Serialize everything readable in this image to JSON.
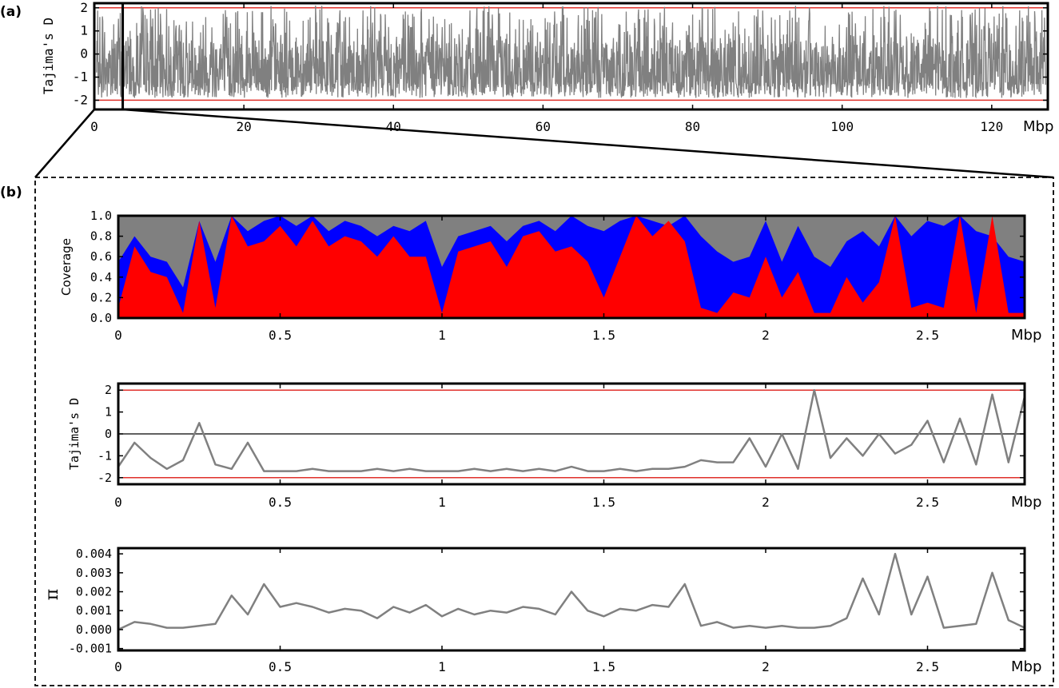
{
  "chart_data": [
    {
      "id": "a",
      "panel_label": "(a)",
      "type": "line",
      "ylabel": "Tajima's D",
      "x_unit": "Mbp",
      "xlim": [
        0,
        127.5
      ],
      "ylim": [
        -2.4,
        2.2
      ],
      "x_ticks": [
        0,
        20,
        40,
        60,
        80,
        100,
        120
      ],
      "y_ticks": [
        -2,
        -1,
        0,
        1,
        2
      ],
      "reference_lines": [
        2,
        -2
      ],
      "zoom_window": [
        0,
        3.8
      ],
      "series_color": "#808080",
      "reference_color": "#e0302a",
      "data_note": "dense genome-wide Tajima's D values mostly between -1.9 and 2.1"
    },
    {
      "id": "b1",
      "panel_label": "(b)",
      "type": "area",
      "ylabel": "Coverage",
      "x_unit": "Mbp",
      "xlim": [
        0,
        2.8
      ],
      "ylim": [
        0,
        1.0
      ],
      "x_ticks": [
        0,
        0.5,
        1,
        1.5,
        2,
        2.5
      ],
      "x_tick_labels": [
        "0",
        "0.5",
        "1",
        "1.5",
        "2",
        "2.5"
      ],
      "y_ticks": [
        0,
        0.2,
        0.4,
        0.6,
        0.8,
        1.0
      ],
      "y_tick_labels": [
        "0.0",
        "0.2",
        "0.4",
        "0.6",
        "0.8",
        "1.0"
      ],
      "colors": {
        "background": "#808080",
        "blue": "#0000ff",
        "red": "#ff0000"
      },
      "x": [
        0,
        0.05,
        0.1,
        0.15,
        0.2,
        0.25,
        0.3,
        0.35,
        0.4,
        0.45,
        0.5,
        0.55,
        0.6,
        0.65,
        0.7,
        0.75,
        0.8,
        0.85,
        0.9,
        0.95,
        1.0,
        1.05,
        1.1,
        1.15,
        1.2,
        1.25,
        1.3,
        1.35,
        1.4,
        1.45,
        1.5,
        1.55,
        1.6,
        1.65,
        1.7,
        1.75,
        1.8,
        1.85,
        1.9,
        1.95,
        2.0,
        2.05,
        2.1,
        2.15,
        2.2,
        2.25,
        2.3,
        2.35,
        2.4,
        2.45,
        2.5,
        2.55,
        2.6,
        2.65,
        2.7,
        2.75,
        2.8
      ],
      "blue_values": [
        0.55,
        0.8,
        0.6,
        0.55,
        0.3,
        0.95,
        0.55,
        1.0,
        0.85,
        0.95,
        1.0,
        0.9,
        1.0,
        0.85,
        0.95,
        0.9,
        0.8,
        0.9,
        0.85,
        0.95,
        0.5,
        0.8,
        0.85,
        0.9,
        0.75,
        0.9,
        0.95,
        0.85,
        1.0,
        0.9,
        0.85,
        0.95,
        1.0,
        0.95,
        0.9,
        1.0,
        0.8,
        0.65,
        0.55,
        0.6,
        0.95,
        0.55,
        0.9,
        0.6,
        0.5,
        0.75,
        0.85,
        0.7,
        1.0,
        0.8,
        0.95,
        0.9,
        1.0,
        0.85,
        0.8,
        0.6,
        0.55
      ],
      "red_values": [
        0.1,
        0.7,
        0.45,
        0.4,
        0.05,
        0.95,
        0.1,
        1.0,
        0.7,
        0.75,
        0.9,
        0.7,
        0.95,
        0.7,
        0.8,
        0.75,
        0.6,
        0.8,
        0.6,
        0.6,
        0.05,
        0.65,
        0.7,
        0.75,
        0.5,
        0.8,
        0.85,
        0.65,
        0.7,
        0.55,
        0.2,
        0.6,
        1.0,
        0.8,
        0.95,
        0.75,
        0.1,
        0.05,
        0.25,
        0.2,
        0.6,
        0.2,
        0.45,
        0.05,
        0.05,
        0.4,
        0.15,
        0.35,
        1.0,
        0.1,
        0.15,
        0.1,
        1.0,
        0.05,
        1.0,
        0.05,
        0.05
      ]
    },
    {
      "id": "b2",
      "type": "line",
      "ylabel": "Tajima's D",
      "x_unit": "Mbp",
      "xlim": [
        0,
        2.8
      ],
      "ylim": [
        -2.3,
        2.3
      ],
      "x_ticks": [
        0,
        0.5,
        1,
        1.5,
        2,
        2.5
      ],
      "x_tick_labels": [
        "0",
        "0.5",
        "1",
        "1.5",
        "2",
        "2.5"
      ],
      "y_ticks": [
        -2,
        -1,
        0,
        1,
        2
      ],
      "reference_lines": [
        2,
        -2
      ],
      "zero_line": 0,
      "series_color": "#808080",
      "reference_color": "#e0302a",
      "x": [
        0,
        0.05,
        0.1,
        0.15,
        0.2,
        0.25,
        0.3,
        0.35,
        0.4,
        0.45,
        0.5,
        0.55,
        0.6,
        0.65,
        0.7,
        0.75,
        0.8,
        0.85,
        0.9,
        0.95,
        1.0,
        1.05,
        1.1,
        1.15,
        1.2,
        1.25,
        1.3,
        1.35,
        1.4,
        1.45,
        1.5,
        1.55,
        1.6,
        1.65,
        1.7,
        1.75,
        1.8,
        1.85,
        1.9,
        1.95,
        2.0,
        2.05,
        2.1,
        2.15,
        2.2,
        2.25,
        2.3,
        2.35,
        2.4,
        2.45,
        2.5,
        2.55,
        2.6,
        2.65,
        2.7,
        2.75,
        2.8
      ],
      "y": [
        -1.5,
        -0.4,
        -1.1,
        -1.6,
        -1.2,
        0.5,
        -1.4,
        -1.6,
        -0.4,
        -1.7,
        -1.7,
        -1.7,
        -1.6,
        -1.7,
        -1.7,
        -1.7,
        -1.6,
        -1.7,
        -1.6,
        -1.7,
        -1.7,
        -1.7,
        -1.6,
        -1.7,
        -1.6,
        -1.7,
        -1.6,
        -1.7,
        -1.5,
        -1.7,
        -1.7,
        -1.6,
        -1.7,
        -1.6,
        -1.6,
        -1.5,
        -1.2,
        -1.3,
        -1.3,
        -0.2,
        -1.5,
        0.0,
        -1.6,
        2.0,
        -1.1,
        -0.2,
        -1.0,
        0.0,
        -0.9,
        -0.5,
        0.6,
        -1.3,
        0.7,
        -1.4,
        1.8,
        -1.3,
        1.7
      ]
    },
    {
      "id": "b3",
      "type": "line",
      "ylabel": "π",
      "x_unit": "Mbp",
      "xlim": [
        0,
        2.8
      ],
      "ylim": [
        -0.0011,
        0.0043
      ],
      "x_ticks": [
        0,
        0.5,
        1,
        1.5,
        2,
        2.5
      ],
      "x_tick_labels": [
        "0",
        "0.5",
        "1",
        "1.5",
        "2",
        "2.5"
      ],
      "y_ticks": [
        -0.001,
        0.0,
        0.001,
        0.002,
        0.003,
        0.004
      ],
      "y_tick_labels": [
        "-0.001",
        "0.000",
        "0.001",
        "0.002",
        "0.003",
        "0.004"
      ],
      "series_color": "#808080",
      "x": [
        0,
        0.05,
        0.1,
        0.15,
        0.2,
        0.25,
        0.3,
        0.35,
        0.4,
        0.45,
        0.5,
        0.55,
        0.6,
        0.65,
        0.7,
        0.75,
        0.8,
        0.85,
        0.9,
        0.95,
        1.0,
        1.05,
        1.1,
        1.15,
        1.2,
        1.25,
        1.3,
        1.35,
        1.4,
        1.45,
        1.5,
        1.55,
        1.6,
        1.65,
        1.7,
        1.75,
        1.8,
        1.85,
        1.9,
        1.95,
        2.0,
        2.05,
        2.1,
        2.15,
        2.2,
        2.25,
        2.3,
        2.35,
        2.4,
        2.45,
        2.5,
        2.55,
        2.6,
        2.65,
        2.7,
        2.75,
        2.8
      ],
      "y": [
        0.0,
        0.0004,
        0.0003,
        0.0001,
        0.0001,
        0.0002,
        0.0003,
        0.0018,
        0.0008,
        0.0024,
        0.0012,
        0.0014,
        0.0012,
        0.0009,
        0.0011,
        0.001,
        0.0006,
        0.0012,
        0.0009,
        0.0013,
        0.0007,
        0.0011,
        0.0008,
        0.001,
        0.0009,
        0.0012,
        0.0011,
        0.0008,
        0.002,
        0.001,
        0.0007,
        0.0011,
        0.001,
        0.0013,
        0.0012,
        0.0024,
        0.0002,
        0.0004,
        0.0001,
        0.0002,
        0.0001,
        0.0002,
        0.0001,
        0.0001,
        0.0002,
        0.0006,
        0.0027,
        0.0008,
        0.004,
        0.0008,
        0.0028,
        0.0001,
        0.0002,
        0.0003,
        0.003,
        0.0005,
        0.0001
      ]
    }
  ]
}
